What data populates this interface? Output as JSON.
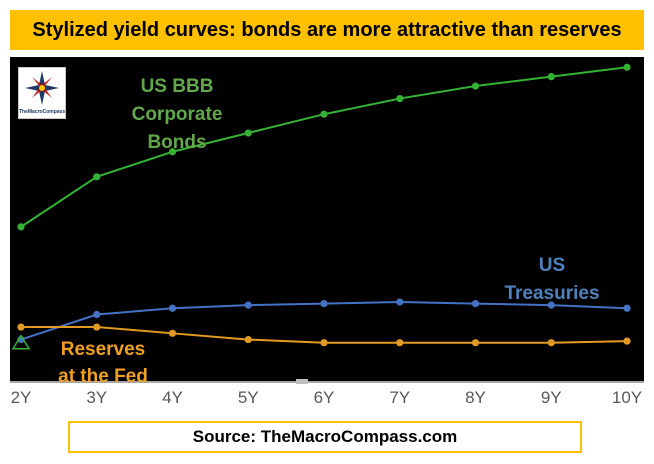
{
  "header": {
    "title": "Stylized yield curves: bonds are more attractive than reserves"
  },
  "footer": {
    "source": "Source: TheMacroCompass.com"
  },
  "logo": {
    "text": "TheMacroCompass",
    "icon": "compass-star-logo"
  },
  "colors": {
    "title_bg": "#ffc000",
    "chart_bg": "#000000",
    "corporate": "#33b233",
    "treasuries": "#4472c4",
    "reserves": "#e39a22",
    "corporate_label": "#62a84a",
    "treasuries_label": "#4f81bd",
    "reserves_label": "#f0a020"
  },
  "chart_data": {
    "type": "line",
    "title": "Stylized yield curves: bonds are more attractive than reserves",
    "xlabel": "",
    "ylabel": "",
    "categories": [
      "2Y",
      "3Y",
      "4Y",
      "5Y",
      "6Y",
      "7Y",
      "8Y",
      "9Y",
      "10Y"
    ],
    "ylim": [
      0,
      100
    ],
    "grid": false,
    "y_axis_shown": false,
    "series": [
      {
        "name": "US BBB Corporate Bonds",
        "label_lines": [
          "US BBB",
          "Corporate",
          "Bonds"
        ],
        "color": "#33b233",
        "values": [
          47,
          63,
          71,
          77,
          83,
          88,
          92,
          95,
          98
        ]
      },
      {
        "name": "US Treasuries",
        "label_lines": [
          "US",
          "Treasuries"
        ],
        "color": "#4472c4",
        "values": [
          11,
          19,
          21,
          22,
          22.5,
          23,
          22.5,
          22,
          21
        ]
      },
      {
        "name": "Reserves at the Fed",
        "label_lines": [
          "Reserves",
          "at the Fed"
        ],
        "color": "#e39a22",
        "values": [
          15,
          15,
          13,
          11,
          10,
          10,
          10,
          10,
          10.5
        ]
      }
    ],
    "annotations": [
      {
        "type": "triangle-marker",
        "x": "2Y",
        "value": 10,
        "color": "#33b233"
      }
    ]
  }
}
